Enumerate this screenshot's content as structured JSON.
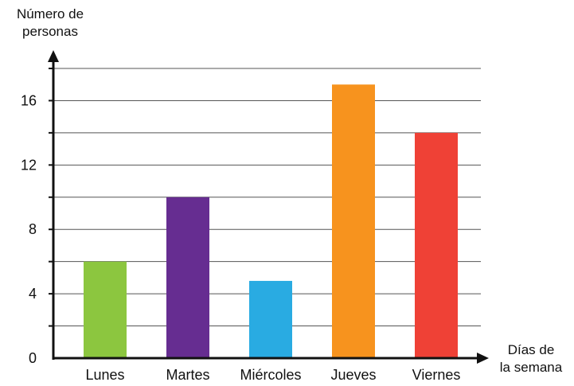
{
  "chart_data": {
    "type": "bar",
    "categories": [
      "Lunes",
      "Martes",
      "Miércoles",
      "Jueves",
      "Viernes"
    ],
    "values": [
      6,
      10,
      4.8,
      17,
      14
    ],
    "colors": [
      "#8cc63f",
      "#662d91",
      "#29abe2",
      "#f7931e",
      "#ef4136"
    ],
    "ylabel_lines": [
      "Número de",
      "personas"
    ],
    "xlabel_lines": [
      "Días de",
      "la semana"
    ],
    "ylim": [
      0,
      18
    ],
    "yticks": [
      0,
      4,
      8,
      12,
      16
    ],
    "grid": true,
    "gridlines": [
      2,
      4,
      6,
      8,
      10,
      12,
      14,
      16,
      18
    ]
  }
}
